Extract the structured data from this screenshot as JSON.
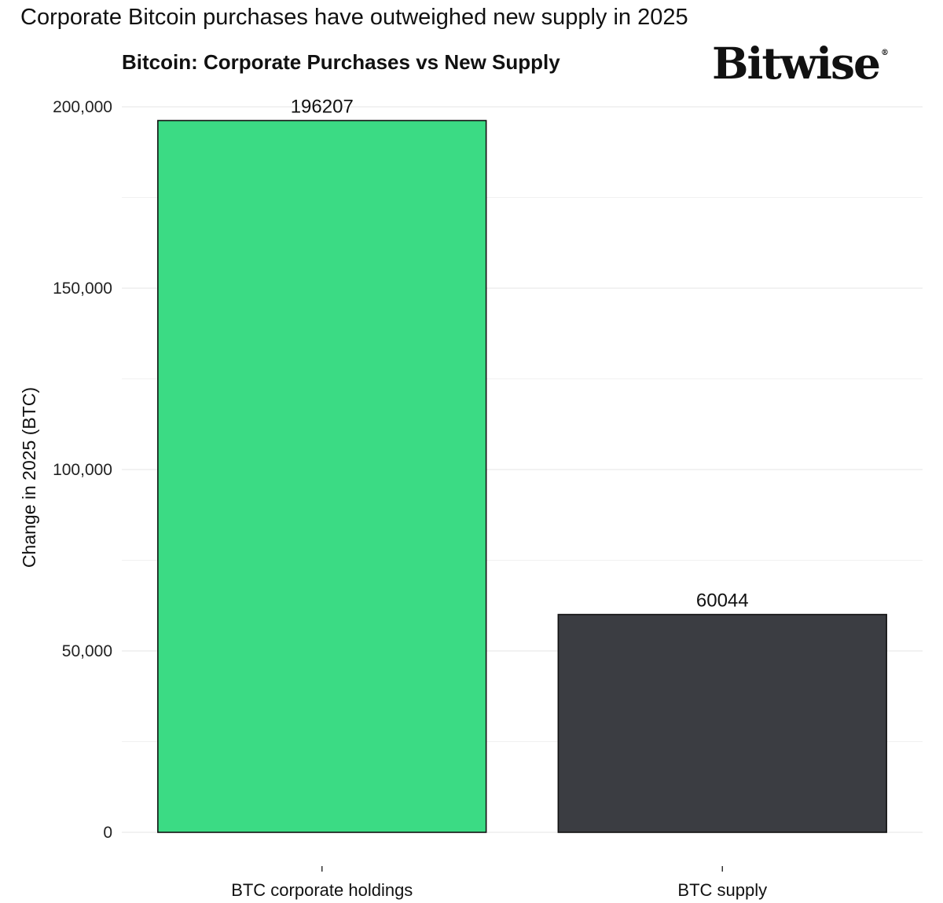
{
  "header": {
    "headline": "Corporate Bitcoin purchases have outweighed new supply in 2025",
    "brand": "Bitwise",
    "brand_mark": "®"
  },
  "chart_data": {
    "type": "bar",
    "title": "Bitcoin: Corporate Purchases vs New Supply",
    "xlabel": "",
    "ylabel": "Change in 2025 (BTC)",
    "categories": [
      "BTC corporate holdings",
      "BTC supply"
    ],
    "values": [
      196207,
      60044
    ],
    "data_labels": [
      "196207",
      "60044"
    ],
    "colors": [
      "#3bdb84",
      "#3b3d42"
    ],
    "ylim": [
      0,
      200000
    ],
    "yticks": [
      0,
      50000,
      100000,
      150000,
      200000
    ],
    "ytick_labels": [
      "0",
      "50,000",
      "100,000",
      "150,000",
      "200,000"
    ],
    "grid": true,
    "legend": "none"
  }
}
